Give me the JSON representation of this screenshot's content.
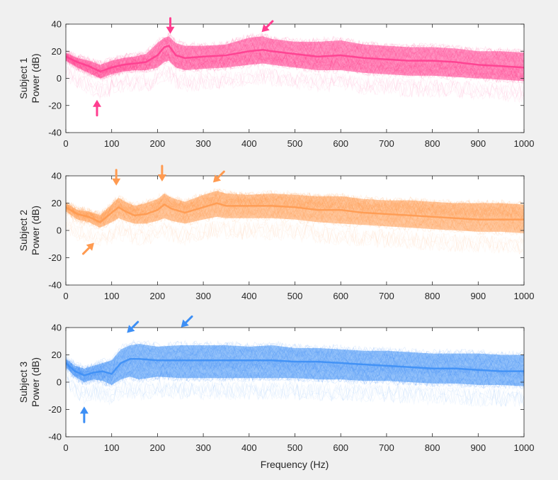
{
  "figure": {
    "xlabel": "Frequency (Hz)"
  },
  "chart_data": [
    {
      "type": "line",
      "subplot": 1,
      "ylabel_line1": "Subject 1",
      "ylabel_line2": "Power (dB)",
      "xlim": [
        0,
        1000
      ],
      "ylim": [
        -40,
        40
      ],
      "xticks": [
        0,
        100,
        200,
        300,
        400,
        500,
        600,
        700,
        800,
        900,
        1000
      ],
      "yticks": [
        40,
        20,
        0,
        -20,
        -40
      ],
      "grid": false,
      "color": "#ff3d8f",
      "series": [
        {
          "stat": "mean",
          "x": [
            0,
            25,
            50,
            75,
            100,
            125,
            150,
            175,
            200,
            215,
            225,
            240,
            260,
            300,
            350,
            400,
            430,
            450,
            500,
            550,
            600,
            650,
            700,
            750,
            800,
            850,
            900,
            950,
            1000
          ],
          "values": [
            16,
            12,
            9,
            5,
            8,
            10,
            11,
            12,
            17,
            23,
            24,
            17,
            15,
            16,
            17,
            20,
            21,
            20,
            18,
            16,
            17,
            15,
            14,
            13,
            13,
            12,
            10,
            9,
            8
          ]
        },
        {
          "stat": "upper",
          "x": [
            0,
            25,
            50,
            75,
            100,
            125,
            150,
            175,
            200,
            215,
            225,
            240,
            260,
            300,
            350,
            400,
            430,
            450,
            500,
            550,
            600,
            650,
            700,
            750,
            800,
            850,
            900,
            950,
            1000
          ],
          "values": [
            19,
            15,
            13,
            10,
            13,
            15,
            16,
            18,
            26,
            30,
            31,
            26,
            24,
            24,
            25,
            30,
            31,
            29,
            27,
            27,
            28,
            25,
            24,
            23,
            23,
            22,
            20,
            20,
            19
          ]
        },
        {
          "stat": "lower",
          "x": [
            0,
            25,
            50,
            75,
            100,
            125,
            150,
            175,
            200,
            215,
            225,
            240,
            260,
            300,
            350,
            400,
            430,
            450,
            500,
            550,
            600,
            650,
            700,
            750,
            800,
            850,
            900,
            950,
            1000
          ],
          "values": [
            13,
            8,
            4,
            0,
            3,
            5,
            6,
            6,
            8,
            12,
            13,
            8,
            6,
            7,
            8,
            10,
            11,
            10,
            8,
            6,
            6,
            4,
            3,
            2,
            2,
            1,
            0,
            -1,
            -2
          ]
        }
      ],
      "annotations": [
        {
          "x": 68,
          "y": -20,
          "dir": "up"
        },
        {
          "x": 228,
          "y": 37,
          "dir": "down"
        },
        {
          "x": 436,
          "y": 37,
          "dir": "down-left"
        }
      ]
    },
    {
      "type": "line",
      "subplot": 2,
      "ylabel_line1": "Subject 2",
      "ylabel_line2": "Power (dB)",
      "xlim": [
        0,
        1000
      ],
      "ylim": [
        -40,
        40
      ],
      "xticks": [
        0,
        100,
        200,
        300,
        400,
        500,
        600,
        700,
        800,
        900,
        1000
      ],
      "yticks": [
        40,
        20,
        0,
        -20,
        -40
      ],
      "grid": false,
      "color": "#ff9a50",
      "series": [
        {
          "stat": "mean",
          "x": [
            0,
            25,
            50,
            75,
            100,
            115,
            130,
            150,
            175,
            200,
            215,
            230,
            260,
            300,
            330,
            350,
            400,
            450,
            500,
            550,
            600,
            650,
            700,
            750,
            800,
            850,
            900,
            950,
            1000
          ],
          "values": [
            17,
            12,
            10,
            6,
            13,
            17,
            14,
            11,
            12,
            15,
            19,
            16,
            13,
            17,
            20,
            18,
            18,
            18,
            17,
            15,
            15,
            13,
            12,
            11,
            10,
            9,
            8,
            8,
            8
          ]
        },
        {
          "stat": "upper",
          "x": [
            0,
            25,
            50,
            75,
            100,
            115,
            130,
            150,
            175,
            200,
            215,
            230,
            260,
            300,
            330,
            350,
            400,
            450,
            500,
            550,
            600,
            650,
            700,
            750,
            800,
            850,
            900,
            950,
            1000
          ],
          "values": [
            20,
            15,
            14,
            11,
            19,
            24,
            21,
            18,
            20,
            23,
            27,
            24,
            21,
            26,
            29,
            27,
            26,
            27,
            26,
            25,
            25,
            23,
            22,
            22,
            21,
            20,
            20,
            20,
            19
          ]
        },
        {
          "stat": "lower",
          "x": [
            0,
            25,
            50,
            75,
            100,
            115,
            130,
            150,
            175,
            200,
            215,
            230,
            260,
            300,
            330,
            350,
            400,
            450,
            500,
            550,
            600,
            650,
            700,
            750,
            800,
            850,
            900,
            950,
            1000
          ],
          "values": [
            14,
            8,
            6,
            2,
            6,
            9,
            7,
            5,
            5,
            7,
            9,
            7,
            5,
            8,
            10,
            9,
            9,
            9,
            8,
            6,
            5,
            4,
            3,
            2,
            1,
            0,
            -1,
            -1,
            -2
          ]
        }
      ],
      "annotations": [
        {
          "x": 53,
          "y": -12,
          "dir": "up-right"
        },
        {
          "x": 110,
          "y": 37,
          "dir": "down"
        },
        {
          "x": 210,
          "y": 40,
          "dir": "down"
        },
        {
          "x": 330,
          "y": 38,
          "dir": "down-left"
        }
      ]
    },
    {
      "type": "line",
      "subplot": 3,
      "ylabel_line1": "Subject 3",
      "ylabel_line2": "Power (dB)",
      "xlim": [
        0,
        1000
      ],
      "ylim": [
        -40,
        40
      ],
      "xticks": [
        0,
        100,
        200,
        300,
        400,
        500,
        600,
        700,
        800,
        900,
        1000
      ],
      "yticks": [
        40,
        20,
        0,
        -20,
        -40
      ],
      "grid": false,
      "color": "#3d8ff5",
      "series": [
        {
          "stat": "mean",
          "x": [
            0,
            20,
            40,
            60,
            80,
            100,
            120,
            140,
            160,
            200,
            250,
            300,
            350,
            400,
            450,
            500,
            550,
            600,
            650,
            700,
            750,
            800,
            850,
            900,
            950,
            1000
          ],
          "values": [
            14,
            8,
            5,
            7,
            8,
            6,
            14,
            17,
            17,
            16,
            16,
            16,
            16,
            16,
            16,
            15,
            15,
            14,
            13,
            12,
            11,
            10,
            10,
            9,
            8,
            8
          ]
        },
        {
          "stat": "upper",
          "x": [
            0,
            20,
            40,
            60,
            80,
            100,
            120,
            140,
            160,
            200,
            250,
            300,
            350,
            400,
            450,
            500,
            550,
            600,
            650,
            700,
            750,
            800,
            850,
            900,
            950,
            1000
          ],
          "values": [
            17,
            12,
            10,
            12,
            14,
            16,
            24,
            27,
            28,
            26,
            27,
            27,
            27,
            26,
            27,
            25,
            25,
            24,
            23,
            23,
            22,
            21,
            21,
            21,
            20,
            20
          ]
        },
        {
          "stat": "lower",
          "x": [
            0,
            20,
            40,
            60,
            80,
            100,
            120,
            140,
            160,
            200,
            250,
            300,
            350,
            400,
            450,
            500,
            550,
            600,
            650,
            700,
            750,
            800,
            850,
            900,
            950,
            1000
          ],
          "values": [
            11,
            4,
            0,
            2,
            1,
            -2,
            2,
            4,
            2,
            4,
            3,
            3,
            3,
            3,
            3,
            3,
            2,
            2,
            1,
            1,
            0,
            -1,
            -1,
            -2,
            -2,
            -3
          ]
        }
      ],
      "annotations": [
        {
          "x": 40,
          "y": -22,
          "dir": "up"
        },
        {
          "x": 142,
          "y": 39,
          "dir": "down-left"
        },
        {
          "x": 260,
          "y": 43,
          "dir": "down-left"
        }
      ]
    }
  ]
}
